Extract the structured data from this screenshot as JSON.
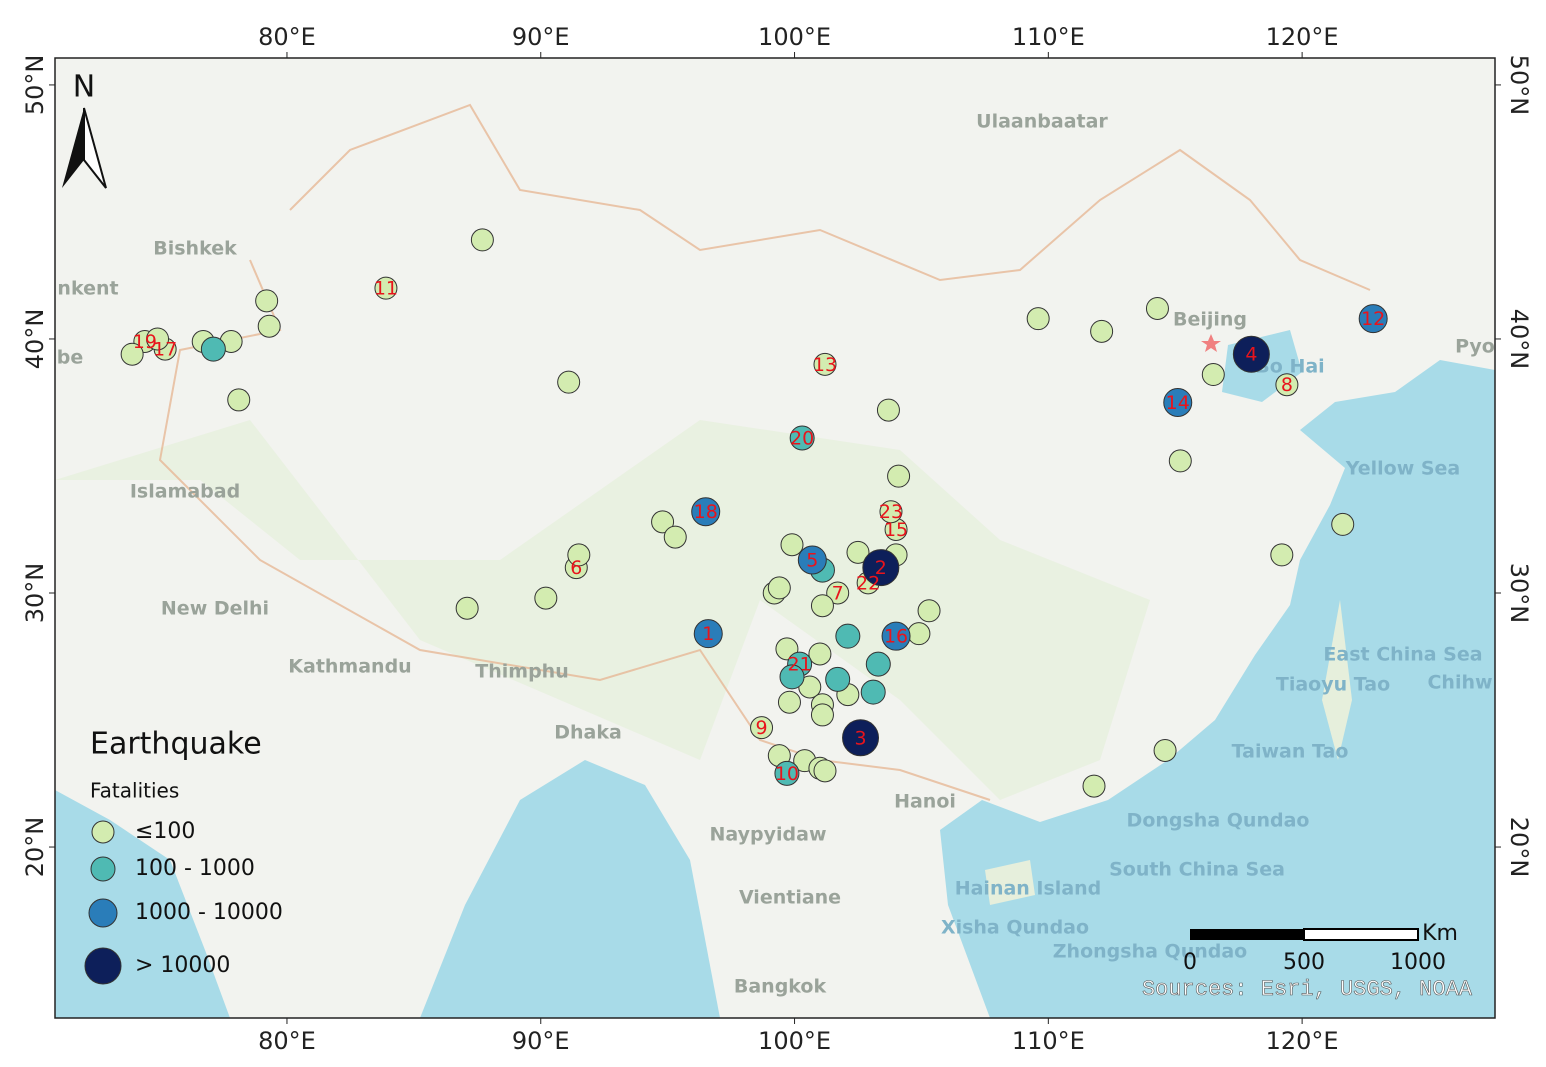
{
  "map": {
    "xlim": [
      70.86,
      127.6
    ],
    "ylim": [
      13.27,
      51.06
    ],
    "xticks": [
      {
        "value": 80,
        "label": "80°E"
      },
      {
        "value": 90,
        "label": "90°E"
      },
      {
        "value": 100,
        "label": "100°E"
      },
      {
        "value": 110,
        "label": "110°E"
      },
      {
        "value": 120,
        "label": "120°E"
      }
    ],
    "yticks": [
      {
        "value": 50,
        "label": "50°N"
      },
      {
        "value": 40,
        "label": "40°N"
      },
      {
        "value": 30,
        "label": "30°N"
      },
      {
        "value": 20,
        "label": "20°N"
      }
    ],
    "north": "N",
    "legend": {
      "title": "Earthquake",
      "subtitle": "Fatalities",
      "classes": [
        {
          "label": "≤100",
          "color": "#d3ecb0"
        },
        {
          "label": "100 - 1000",
          "color": "#4fbab3"
        },
        {
          "label": "1000 - 10000",
          "color": "#2a7db9"
        },
        {
          "label": "> 10000",
          "color": "#0d1f5a"
        }
      ]
    },
    "places": [
      "Ulaanbaatar",
      "Bishkek",
      "nkent",
      "be",
      "Islamabad",
      "New Delhi",
      "Kathmandu",
      "Thimphu",
      "Dhaka",
      "Naypyidaw",
      "Vientiane",
      "Bangkok",
      "Hanoi",
      "Beijing",
      "Pyo"
    ],
    "seas": [
      "Bo Hai",
      "Yellow Sea",
      "East China Sea",
      "Tiaoyu Tao",
      "Chihw",
      "Taiwan Tao",
      "Dongsha Qundao",
      "South China Sea",
      "Hainan Island",
      "Xisha Qundao",
      "Zhongsha Qundao"
    ],
    "scale": {
      "unit": "Km",
      "ticks": [
        0,
        500,
        1000
      ]
    },
    "source": "Sources: Esri, USGS, NOAA",
    "events": [
      {
        "id": 1,
        "lon": 96.6,
        "lat": 28.4,
        "class": 2
      },
      {
        "id": 2,
        "lon": 103.4,
        "lat": 31.0,
        "class": 3
      },
      {
        "id": 3,
        "lon": 102.6,
        "lat": 24.3,
        "class": 3
      },
      {
        "id": 4,
        "lon": 118.0,
        "lat": 39.4,
        "class": 3
      },
      {
        "id": 5,
        "lon": 100.7,
        "lat": 31.3,
        "class": 2
      },
      {
        "id": 6,
        "lon": 91.4,
        "lat": 31.0,
        "class": 0
      },
      {
        "id": 7,
        "lon": 101.7,
        "lat": 30.0,
        "class": 0
      },
      {
        "id": 8,
        "lon": 119.4,
        "lat": 38.2,
        "class": 0
      },
      {
        "id": 9,
        "lon": 98.7,
        "lat": 24.7,
        "class": 0
      },
      {
        "id": 10,
        "lon": 99.7,
        "lat": 22.9,
        "class": 1
      },
      {
        "id": 11,
        "lon": 83.9,
        "lat": 42.0,
        "class": 0
      },
      {
        "id": 12,
        "lon": 122.8,
        "lat": 40.8,
        "class": 2
      },
      {
        "id": 13,
        "lon": 101.2,
        "lat": 39.0,
        "class": 0
      },
      {
        "id": 14,
        "lon": 115.1,
        "lat": 37.5,
        "class": 2
      },
      {
        "id": 15,
        "lon": 104.0,
        "lat": 32.5,
        "class": 0
      },
      {
        "id": 16,
        "lon": 104.0,
        "lat": 28.3,
        "class": 2
      },
      {
        "id": 17,
        "lon": 75.2,
        "lat": 39.6,
        "class": 0
      },
      {
        "id": 18,
        "lon": 96.5,
        "lat": 33.2,
        "class": 2
      },
      {
        "id": 19,
        "lon": 74.4,
        "lat": 39.9,
        "class": 0
      },
      {
        "id": 20,
        "lon": 100.3,
        "lat": 36.1,
        "class": 1
      },
      {
        "id": 21,
        "lon": 100.2,
        "lat": 27.2,
        "class": 1
      },
      {
        "id": 22,
        "lon": 102.9,
        "lat": 30.4,
        "class": 0
      },
      {
        "id": 23,
        "lon": 103.8,
        "lat": 33.2,
        "class": 0
      },
      {
        "lon": 87.7,
        "lat": 43.9,
        "class": 0
      },
      {
        "lon": 79.2,
        "lat": 41.5,
        "class": 0
      },
      {
        "lon": 79.3,
        "lat": 40.5,
        "class": 0
      },
      {
        "lon": 73.9,
        "lat": 39.4,
        "class": 0
      },
      {
        "lon": 74.9,
        "lat": 40.0,
        "class": 0
      },
      {
        "lon": 76.7,
        "lat": 39.9,
        "class": 0
      },
      {
        "lon": 77.8,
        "lat": 39.9,
        "class": 0
      },
      {
        "lon": 77.1,
        "lat": 39.6,
        "class": 1
      },
      {
        "lon": 78.1,
        "lat": 37.6,
        "class": 0
      },
      {
        "lon": 91.1,
        "lat": 38.3,
        "class": 0
      },
      {
        "lon": 103.7,
        "lat": 37.2,
        "class": 0
      },
      {
        "lon": 104.1,
        "lat": 34.6,
        "class": 0
      },
      {
        "lon": 109.6,
        "lat": 40.8,
        "class": 0
      },
      {
        "lon": 112.1,
        "lat": 40.3,
        "class": 0
      },
      {
        "lon": 114.3,
        "lat": 41.2,
        "class": 0
      },
      {
        "lon": 116.5,
        "lat": 38.6,
        "class": 0
      },
      {
        "lon": 115.2,
        "lat": 35.2,
        "class": 0
      },
      {
        "lon": 121.6,
        "lat": 32.7,
        "class": 0
      },
      {
        "lon": 119.2,
        "lat": 31.5,
        "class": 0
      },
      {
        "lon": 114.6,
        "lat": 23.8,
        "class": 0
      },
      {
        "lon": 111.8,
        "lat": 22.4,
        "class": 0
      },
      {
        "lon": 94.8,
        "lat": 32.8,
        "class": 0
      },
      {
        "lon": 95.3,
        "lat": 32.2,
        "class": 0
      },
      {
        "lon": 91.5,
        "lat": 31.5,
        "class": 0
      },
      {
        "lon": 87.1,
        "lat": 29.4,
        "class": 0
      },
      {
        "lon": 90.2,
        "lat": 29.8,
        "class": 0
      },
      {
        "lon": 99.9,
        "lat": 31.9,
        "class": 0
      },
      {
        "lon": 101.1,
        "lat": 30.9,
        "class": 1
      },
      {
        "lon": 102.5,
        "lat": 31.6,
        "class": 0
      },
      {
        "lon": 104.0,
        "lat": 31.5,
        "class": 0
      },
      {
        "lon": 99.2,
        "lat": 30.0,
        "class": 0
      },
      {
        "lon": 99.4,
        "lat": 30.2,
        "class": 0
      },
      {
        "lon": 101.1,
        "lat": 29.5,
        "class": 0
      },
      {
        "lon": 105.3,
        "lat": 29.3,
        "class": 0
      },
      {
        "lon": 104.9,
        "lat": 28.4,
        "class": 0
      },
      {
        "lon": 102.1,
        "lat": 28.3,
        "class": 1
      },
      {
        "lon": 99.7,
        "lat": 27.8,
        "class": 0
      },
      {
        "lon": 101.0,
        "lat": 27.6,
        "class": 0
      },
      {
        "lon": 103.3,
        "lat": 27.2,
        "class": 1
      },
      {
        "lon": 101.7,
        "lat": 26.6,
        "class": 1
      },
      {
        "lon": 99.9,
        "lat": 26.7,
        "class": 1
      },
      {
        "lon": 103.1,
        "lat": 26.1,
        "class": 1
      },
      {
        "lon": 100.6,
        "lat": 26.3,
        "class": 0
      },
      {
        "lon": 99.8,
        "lat": 25.7,
        "class": 0
      },
      {
        "lon": 101.1,
        "lat": 25.6,
        "class": 0
      },
      {
        "lon": 101.1,
        "lat": 25.2,
        "class": 0
      },
      {
        "lon": 102.1,
        "lat": 26.0,
        "class": 0
      },
      {
        "lon": 99.4,
        "lat": 23.6,
        "class": 0
      },
      {
        "lon": 100.4,
        "lat": 23.4,
        "class": 0
      },
      {
        "lon": 101.0,
        "lat": 23.1,
        "class": 0
      },
      {
        "lon": 101.2,
        "lat": 23.0,
        "class": 0
      }
    ]
  }
}
